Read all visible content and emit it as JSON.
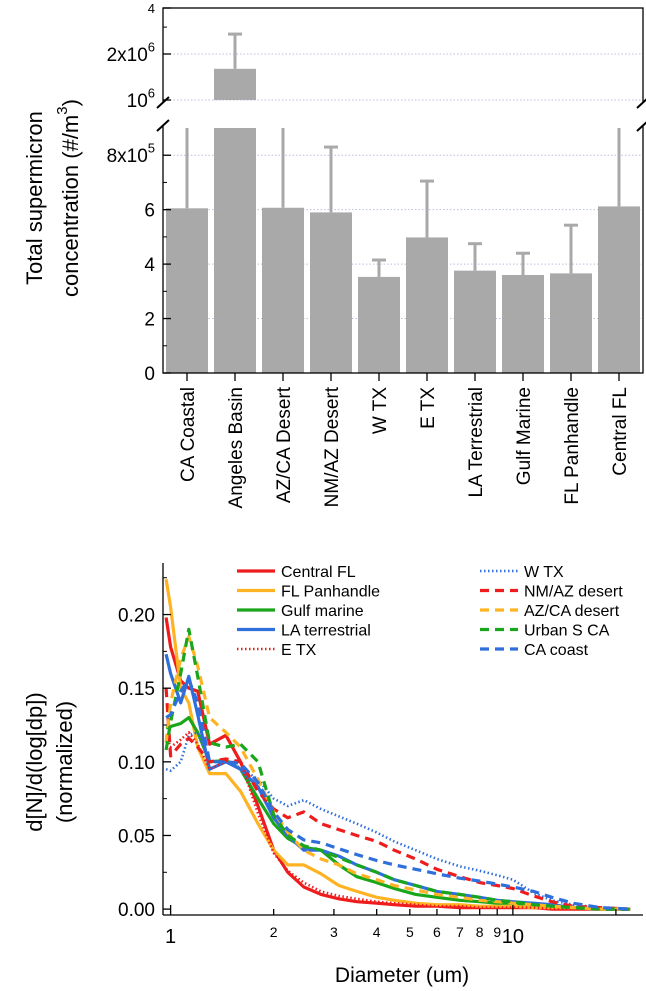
{
  "chart_data": [
    {
      "type": "bar",
      "title": "",
      "xlabel": "",
      "ylabel_line1": "Total supermicron",
      "ylabel_line2": "concentration (#/m",
      "ylabel_exp": "3",
      "ylabel_close": ")",
      "categories": [
        "CA Coastal",
        "Angeles Basin",
        "AZ/CA Desert",
        "NM/AZ Desert",
        "W TX",
        "E TX",
        "LA Terrestrial",
        "Gulf Marine",
        "FL Panhandle",
        "Central FL"
      ],
      "values": [
        605000,
        1600000,
        607000,
        590000,
        353000,
        498000,
        376000,
        360000,
        366000,
        612000
      ],
      "error_upper": [
        980000,
        2700000,
        950000,
        830000,
        415000,
        705000,
        475000,
        440000,
        543000,
        910000
      ],
      "axis_break": true,
      "ylim_lower": [
        0,
        900000
      ],
      "ylim_upper": [
        1000000,
        4000000
      ],
      "lower_ticks": [
        {
          "value": 0,
          "label": "0"
        },
        {
          "value": 200000,
          "label": "2"
        },
        {
          "value": 400000,
          "label": "4"
        },
        {
          "value": 600000,
          "label": "6"
        },
        {
          "value": 800000,
          "label": "8x10",
          "exp": "5"
        }
      ],
      "upper_ticks": [
        {
          "value": 1000000,
          "label": "10",
          "exp": "6"
        },
        {
          "value": 2000000,
          "label": "2x10",
          "exp": "6"
        },
        {
          "value": 4000000,
          "label": "4",
          "exp": ""
        }
      ],
      "grid": true,
      "colors": {
        "bar": "#a9a9a9",
        "error": "#a9a9a9",
        "grid": "#b8bfe0"
      }
    },
    {
      "type": "line",
      "title": "",
      "xlabel": "Diameter (um)",
      "ylabel_line1": "d[N]/d(log[dp])",
      "ylabel_line2": "(normalized)",
      "x_scale": "log",
      "xlim": [
        0.95,
        24
      ],
      "ylim": [
        -0.004,
        0.235
      ],
      "x_ticks": [
        {
          "value": 1,
          "label": "1",
          "major": true
        },
        {
          "value": 2,
          "label": "2"
        },
        {
          "value": 3,
          "label": "3"
        },
        {
          "value": 4,
          "label": "4"
        },
        {
          "value": 5,
          "label": "5"
        },
        {
          "value": 6,
          "label": "6"
        },
        {
          "value": 7,
          "label": "7"
        },
        {
          "value": 8,
          "label": "8"
        },
        {
          "value": 9,
          "label": "9"
        },
        {
          "value": 10,
          "label": "10",
          "major": true
        },
        {
          "value": 20,
          "label": ""
        }
      ],
      "y_ticks": [
        {
          "value": 0.0,
          "label": "0.00"
        },
        {
          "value": 0.05,
          "label": "0.05"
        },
        {
          "value": 0.1,
          "label": "0.10"
        },
        {
          "value": 0.15,
          "label": "0.15"
        },
        {
          "value": 0.2,
          "label": "0.20"
        }
      ],
      "x": [
        0.97,
        1.0,
        1.07,
        1.13,
        1.2,
        1.3,
        1.45,
        1.6,
        1.8,
        2.0,
        2.2,
        2.45,
        2.75,
        3.1,
        3.5,
        4.0,
        4.5,
        5.2,
        6.0,
        7.0,
        8.0,
        9.0,
        10.0,
        11.5,
        13.0,
        15.0,
        18.0,
        22.0
      ],
      "series": [
        {
          "name": "Central FL",
          "color": "#ee1c1c",
          "dash": "solid",
          "values": [
            0.198,
            0.178,
            0.155,
            0.15,
            0.148,
            0.112,
            0.118,
            0.1,
            0.07,
            0.04,
            0.025,
            0.015,
            0.01,
            0.007,
            0.005,
            0.004,
            0.003,
            0.002,
            0.002,
            0.001,
            0.001,
            0.001,
            0.001,
            0.001,
            0.0,
            0.0,
            0.0,
            0.0
          ]
        },
        {
          "name": "FL Panhandle",
          "color": "#ffb323",
          "dash": "solid",
          "values": [
            0.224,
            0.205,
            0.15,
            0.14,
            0.11,
            0.092,
            0.092,
            0.08,
            0.058,
            0.04,
            0.03,
            0.03,
            0.024,
            0.016,
            0.012,
            0.008,
            0.006,
            0.004,
            0.003,
            0.003,
            0.002,
            0.002,
            0.002,
            0.001,
            0.001,
            0.001,
            0.0,
            0.0
          ]
        },
        {
          "name": "Gulf marine",
          "color": "#1aa61a",
          "dash": "solid",
          "values": [
            0.123,
            0.124,
            0.126,
            0.13,
            0.12,
            0.1,
            0.101,
            0.095,
            0.075,
            0.058,
            0.048,
            0.042,
            0.04,
            0.03,
            0.022,
            0.018,
            0.014,
            0.01,
            0.008,
            0.006,
            0.005,
            0.004,
            0.004,
            0.003,
            0.002,
            0.001,
            0.0,
            0.0
          ]
        },
        {
          "name": "LA terrestrial",
          "color": "#2f6fdc",
          "dash": "solid",
          "values": [
            0.173,
            0.16,
            0.14,
            0.158,
            0.132,
            0.095,
            0.1,
            0.095,
            0.083,
            0.062,
            0.05,
            0.04,
            0.04,
            0.036,
            0.03,
            0.025,
            0.02,
            0.016,
            0.012,
            0.01,
            0.008,
            0.006,
            0.005,
            0.004,
            0.003,
            0.001,
            0.0,
            0.0
          ]
        },
        {
          "name": "E TX",
          "color": "#ee1c1c",
          "dash": "dot",
          "values": [
            0.118,
            0.11,
            0.115,
            0.12,
            0.112,
            0.095,
            0.1,
            0.1,
            0.065,
            0.038,
            0.026,
            0.018,
            0.012,
            0.009,
            0.007,
            0.005,
            0.004,
            0.003,
            0.002,
            0.002,
            0.001,
            0.001,
            0.001,
            0.001,
            0.0,
            0.0,
            0.0,
            0.0
          ]
        },
        {
          "name": "W TX",
          "color": "#2f6fdc",
          "dash": "dot",
          "values": [
            0.095,
            0.094,
            0.1,
            0.118,
            0.12,
            0.1,
            0.1,
            0.096,
            0.088,
            0.075,
            0.07,
            0.074,
            0.068,
            0.063,
            0.058,
            0.052,
            0.046,
            0.04,
            0.034,
            0.029,
            0.026,
            0.023,
            0.02,
            0.011,
            0.006,
            0.003,
            0.001,
            0.0
          ]
        },
        {
          "name": "NM/AZ desert",
          "color": "#ee1c1c",
          "dash": "dash",
          "values": [
            0.15,
            0.104,
            0.112,
            0.116,
            0.11,
            0.1,
            0.102,
            0.1,
            0.08,
            0.068,
            0.062,
            0.066,
            0.058,
            0.054,
            0.05,
            0.046,
            0.04,
            0.034,
            0.027,
            0.022,
            0.018,
            0.016,
            0.014,
            0.009,
            0.005,
            0.002,
            0.001,
            0.0
          ]
        },
        {
          "name": "AZ/CA desert",
          "color": "#ffb323",
          "dash": "dash",
          "values": [
            0.113,
            0.14,
            0.17,
            0.185,
            0.165,
            0.13,
            0.12,
            0.11,
            0.088,
            0.066,
            0.052,
            0.04,
            0.034,
            0.03,
            0.024,
            0.02,
            0.016,
            0.013,
            0.01,
            0.008,
            0.006,
            0.005,
            0.004,
            0.003,
            0.002,
            0.001,
            0.0,
            0.0
          ]
        },
        {
          "name": "Urban S CA",
          "color": "#1aa61a",
          "dash": "dash",
          "values": [
            0.108,
            0.127,
            0.16,
            0.19,
            0.158,
            0.113,
            0.11,
            0.112,
            0.1,
            0.064,
            0.05,
            0.043,
            0.04,
            0.035,
            0.03,
            0.025,
            0.02,
            0.016,
            0.012,
            0.01,
            0.008,
            0.006,
            0.005,
            0.003,
            0.002,
            0.001,
            0.0,
            0.0
          ]
        },
        {
          "name": "CA coast",
          "color": "#2f6fdc",
          "dash": "dash",
          "values": [
            0.13,
            0.132,
            0.148,
            0.156,
            0.14,
            0.1,
            0.1,
            0.099,
            0.086,
            0.066,
            0.054,
            0.047,
            0.045,
            0.041,
            0.037,
            0.033,
            0.03,
            0.027,
            0.024,
            0.021,
            0.019,
            0.017,
            0.015,
            0.012,
            0.008,
            0.004,
            0.001,
            0.0
          ]
        }
      ],
      "legend": {
        "placement": "top",
        "columns": 2
      }
    }
  ]
}
